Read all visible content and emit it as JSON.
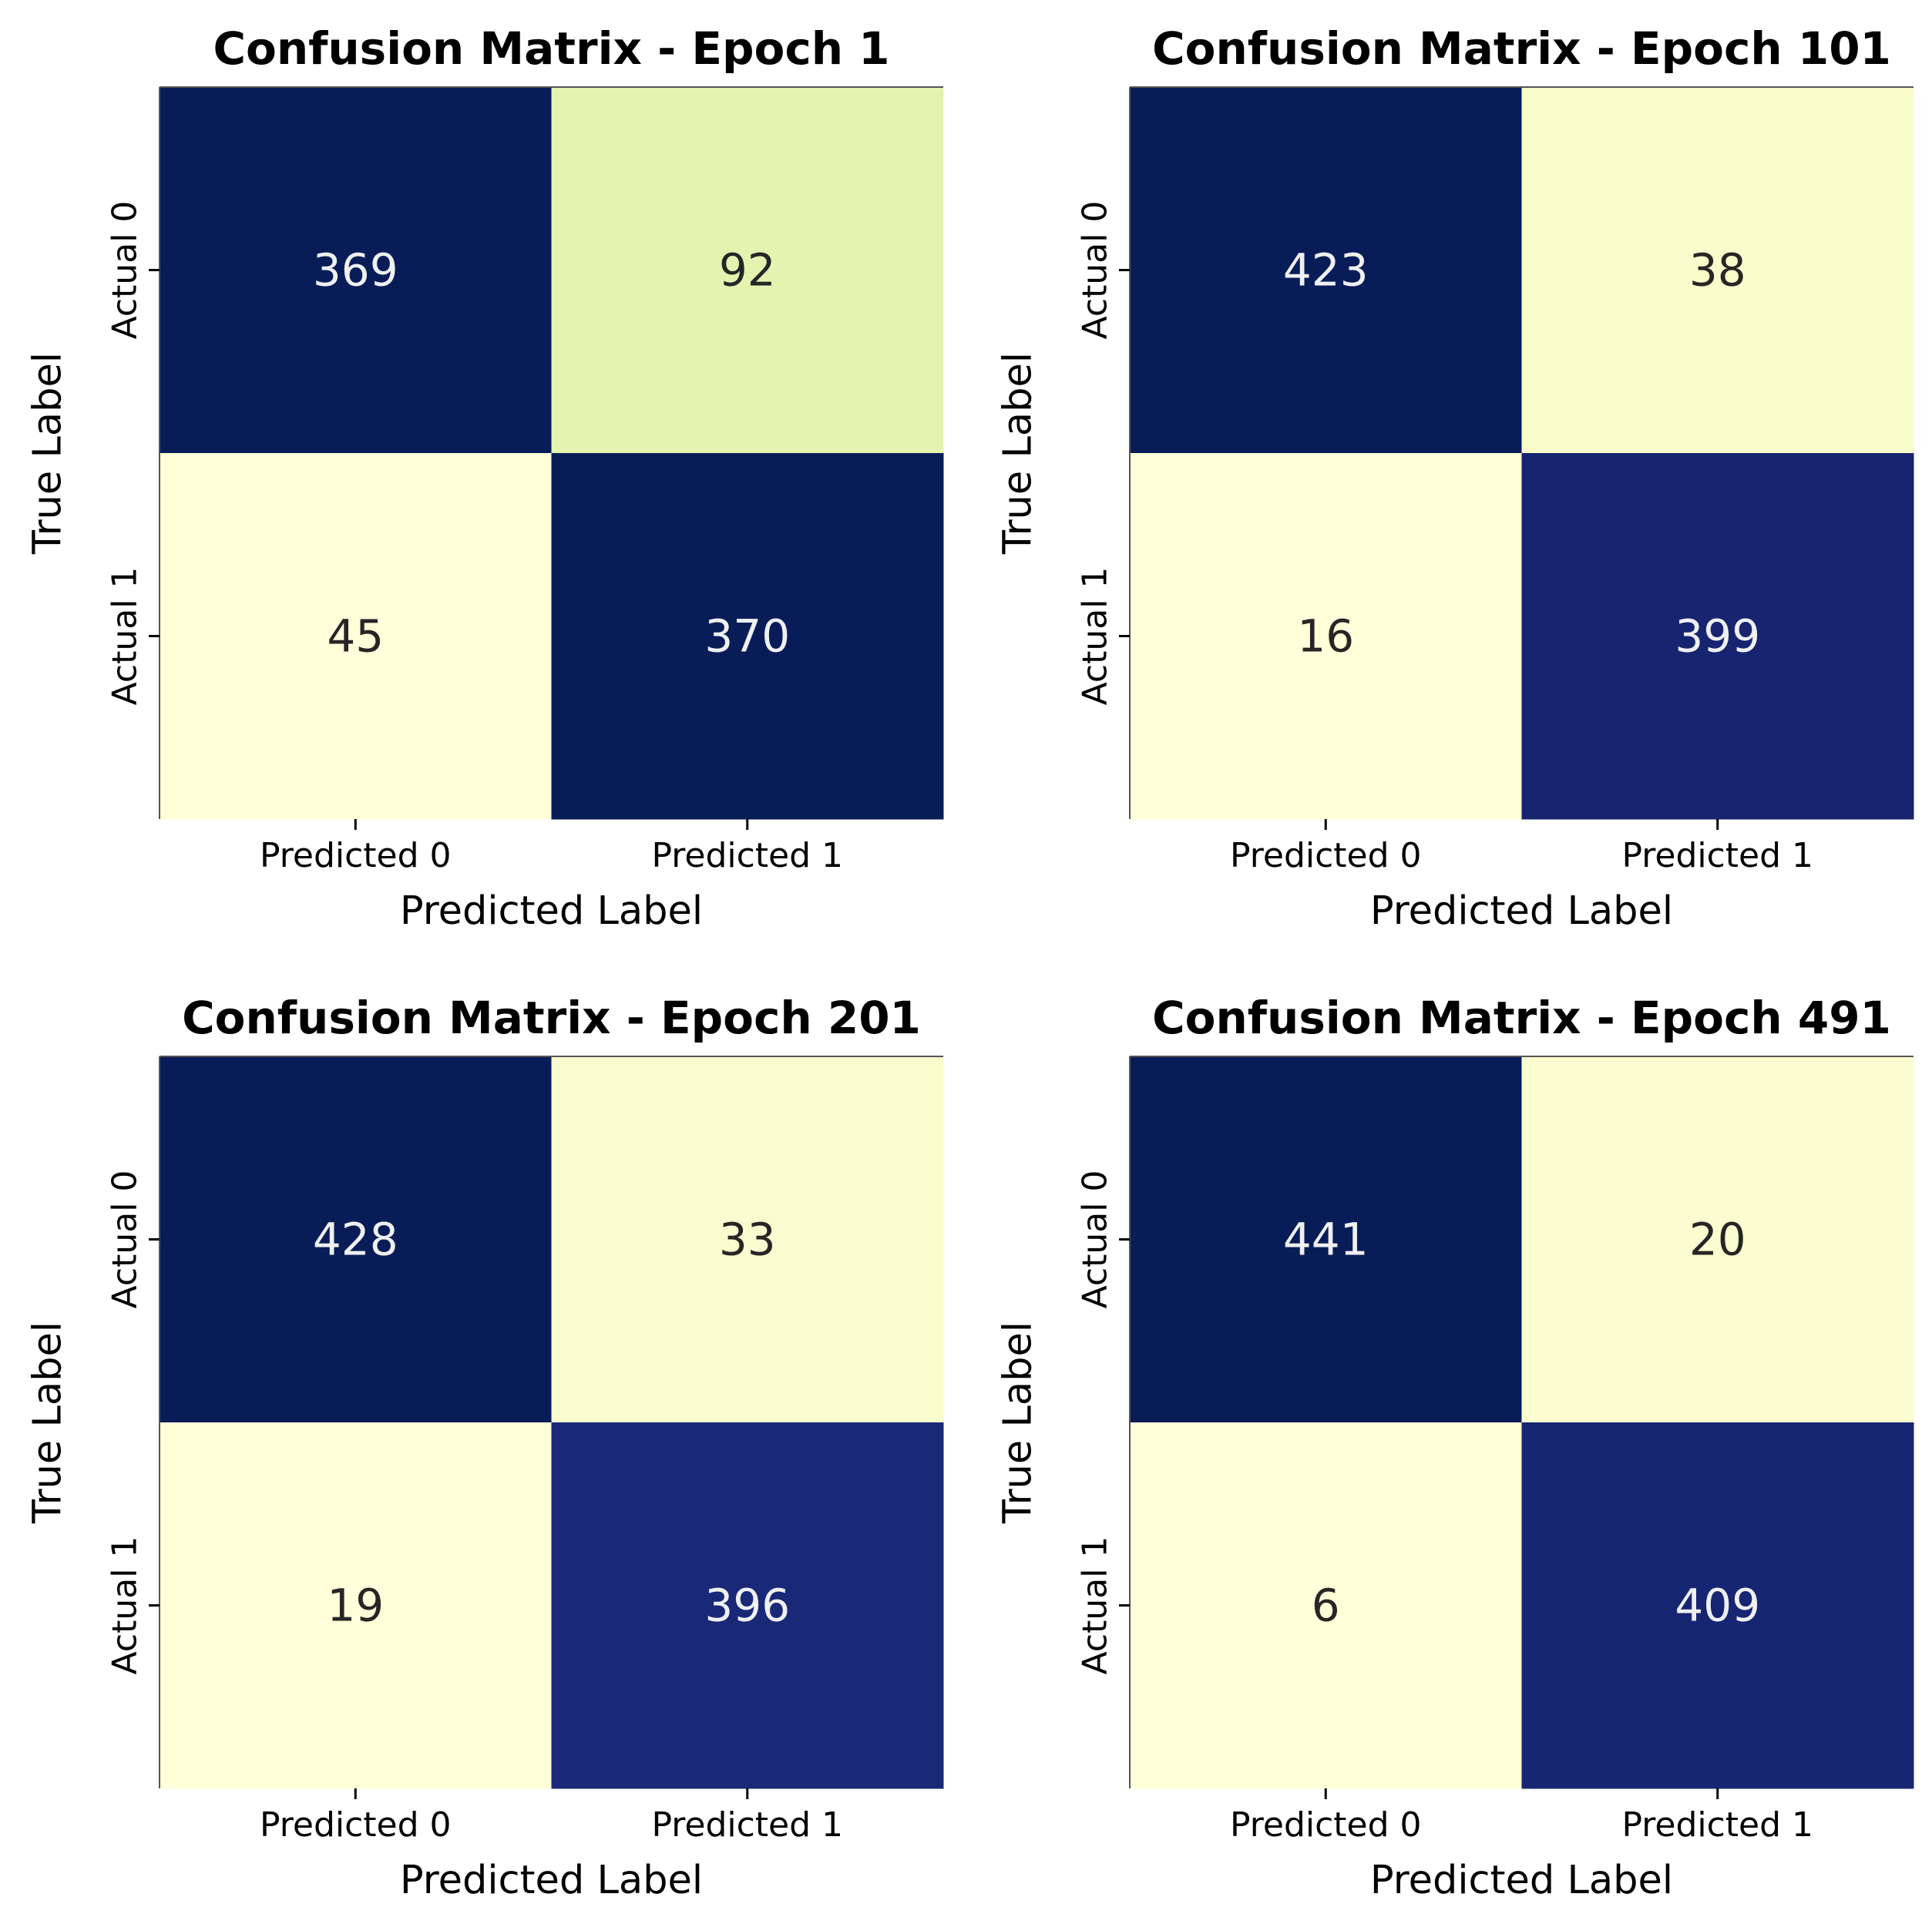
{
  "chart_data": [
    {
      "type": "heatmap",
      "title": "Confusion Matrix - Epoch 1",
      "xlabel": "Predicted Label",
      "ylabel": "True Label",
      "x_categories": [
        "Predicted 0",
        "Predicted 1"
      ],
      "y_categories": [
        "Actual 0",
        "Actual 1"
      ],
      "values": [
        [
          369,
          92
        ],
        [
          45,
          370
        ]
      ],
      "colors": [
        [
          "#081d58",
          "#e3f4b1"
        ],
        [
          "#ffffd9",
          "#081d58"
        ]
      ],
      "text_colors": [
        [
          "#f0f0f0",
          "#262626"
        ],
        [
          "#262626",
          "#f0f0f0"
        ]
      ],
      "colorbar": false,
      "grid": false
    },
    {
      "type": "heatmap",
      "title": "Confusion Matrix - Epoch 101",
      "xlabel": "Predicted Label",
      "ylabel": "True Label",
      "x_categories": [
        "Predicted 0",
        "Predicted 1"
      ],
      "y_categories": [
        "Actual 0",
        "Actual 1"
      ],
      "values": [
        [
          423,
          38
        ],
        [
          16,
          399
        ]
      ],
      "colors": [
        [
          "#081d58",
          "#f8fcca"
        ],
        [
          "#ffffd9",
          "#172570"
        ]
      ],
      "text_colors": [
        [
          "#f0f0f0",
          "#262626"
        ],
        [
          "#262626",
          "#f0f0f0"
        ]
      ],
      "colorbar": false,
      "grid": false
    },
    {
      "type": "heatmap",
      "title": "Confusion Matrix - Epoch 201",
      "xlabel": "Predicted Label",
      "ylabel": "True Label",
      "x_categories": [
        "Predicted 0",
        "Predicted 1"
      ],
      "y_categories": [
        "Actual 0",
        "Actual 1"
      ],
      "values": [
        [
          428,
          33
        ],
        [
          19,
          396
        ]
      ],
      "colors": [
        [
          "#081d58",
          "#f9fccf"
        ],
        [
          "#ffffd9",
          "#192978"
        ]
      ],
      "text_colors": [
        [
          "#f0f0f0",
          "#262626"
        ],
        [
          "#262626",
          "#f0f0f0"
        ]
      ],
      "colorbar": false,
      "grid": false
    },
    {
      "type": "heatmap",
      "title": "Confusion Matrix - Epoch 491",
      "xlabel": "Predicted Label",
      "ylabel": "True Label",
      "x_categories": [
        "Predicted 0",
        "Predicted 1"
      ],
      "y_categories": [
        "Actual 0",
        "Actual 1"
      ],
      "values": [
        [
          441,
          20
        ],
        [
          6,
          409
        ]
      ],
      "colors": [
        [
          "#081d58",
          "#fbfdd0"
        ],
        [
          "#ffffd9",
          "#172672"
        ]
      ],
      "text_colors": [
        [
          "#f0f0f0",
          "#262626"
        ],
        [
          "#262626",
          "#f0f0f0"
        ]
      ],
      "colorbar": false,
      "grid": false
    }
  ]
}
